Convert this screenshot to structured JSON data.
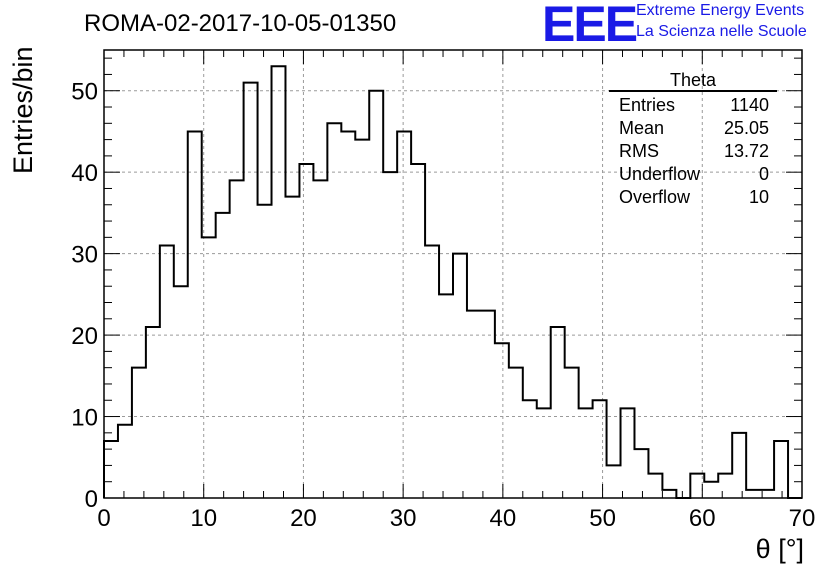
{
  "title": "ROMA-02-2017-10-05-01350",
  "logo": {
    "mark": "EEE",
    "line1": "Extreme Energy Events",
    "line2": "La Scienza nelle Scuole"
  },
  "stats": {
    "title": "Theta",
    "rows": [
      {
        "label": "Entries",
        "value": "1140"
      },
      {
        "label": "Mean",
        "value": "25.05"
      },
      {
        "label": "RMS",
        "value": "13.72"
      },
      {
        "label": "Underflow",
        "value": "0"
      },
      {
        "label": "Overflow",
        "value": "10"
      }
    ]
  },
  "chart_data": {
    "type": "bar",
    "histogram": true,
    "xlabel": "θ [°]",
    "ylabel": "Entries/bin",
    "xlim": [
      0,
      70
    ],
    "ylim": [
      0,
      55
    ],
    "grid": true,
    "bin_width": 1.4,
    "x_bin_edges_start": 0,
    "values": [
      7,
      9,
      16,
      21,
      31,
      26,
      45,
      32,
      35,
      39,
      51,
      36,
      53,
      37,
      41,
      39,
      46,
      45,
      44,
      50,
      40,
      45,
      41,
      31,
      25,
      30,
      23,
      23,
      19,
      16,
      12,
      11,
      21,
      16,
      11,
      12,
      4,
      11,
      6,
      3,
      1,
      0,
      3,
      2,
      3,
      8,
      1,
      1,
      7,
      0
    ],
    "x_ticks": [
      "0",
      "10",
      "20",
      "30",
      "40",
      "50",
      "60",
      "70"
    ],
    "y_ticks": [
      "0",
      "10",
      "20",
      "30",
      "40",
      "50"
    ]
  }
}
